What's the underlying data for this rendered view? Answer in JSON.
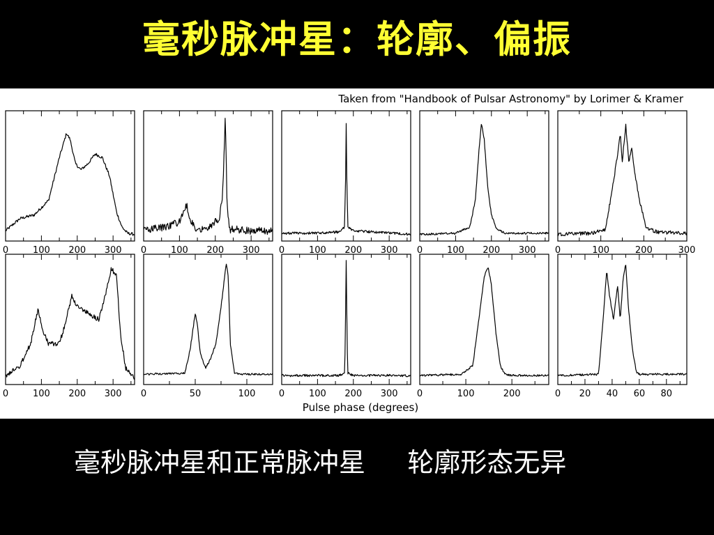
{
  "slide": {
    "title": "毫秒脉冲星：轮廓、偏振",
    "caption_left": "毫秒脉冲星和正常脉冲星",
    "caption_right": "轮廓形态无异"
  },
  "figure": {
    "credit": "Taken from \"Handbook of Pulsar Astronomy\" by Lorimer & Kramer",
    "xlabel": "Pulse phase (degrees)"
  },
  "colors": {
    "background": "#000000",
    "title": "#ffff33",
    "caption": "#ffffff",
    "panel": "#ffffff",
    "trace": "#000000"
  },
  "chart_data": [
    {
      "type": "line",
      "row": 1,
      "col": 1,
      "xlim": [
        0,
        360
      ],
      "ylim": [
        0,
        1
      ],
      "xticks": [
        0,
        100,
        200,
        300
      ],
      "xticklabels": [
        "0",
        "100",
        "200",
        "300"
      ],
      "noise": 0.012,
      "x": [
        0,
        40,
        80,
        120,
        150,
        170,
        180,
        195,
        210,
        230,
        250,
        270,
        290,
        310,
        325,
        340,
        360
      ],
      "y": [
        0.05,
        0.15,
        0.18,
        0.3,
        0.65,
        0.85,
        0.8,
        0.6,
        0.55,
        0.6,
        0.68,
        0.65,
        0.5,
        0.2,
        0.08,
        0.03,
        0.02
      ]
    },
    {
      "type": "line",
      "row": 1,
      "col": 2,
      "xlim": [
        0,
        360
      ],
      "ylim": [
        0,
        1
      ],
      "xticks": [
        0,
        100,
        200,
        300
      ],
      "xticklabels": [
        "0",
        "100",
        "200",
        "300"
      ],
      "noise": 0.03,
      "x": [
        0,
        60,
        100,
        120,
        130,
        145,
        180,
        210,
        220,
        228,
        233,
        240,
        260,
        300,
        360
      ],
      "y": [
        0.06,
        0.08,
        0.12,
        0.26,
        0.14,
        0.06,
        0.08,
        0.15,
        0.3,
        1.0,
        0.25,
        0.06,
        0.06,
        0.05,
        0.05
      ]
    },
    {
      "type": "line",
      "row": 1,
      "col": 3,
      "xlim": [
        0,
        360
      ],
      "ylim": [
        0,
        1
      ],
      "xticks": [
        0,
        100,
        200,
        300
      ],
      "xticklabels": [
        "0",
        "100",
        "200",
        "300"
      ],
      "noise": 0.01,
      "x": [
        0,
        100,
        160,
        175,
        178,
        180,
        182,
        185,
        200,
        260,
        360
      ],
      "y": [
        0.03,
        0.03,
        0.04,
        0.08,
        0.4,
        0.93,
        0.4,
        0.08,
        0.05,
        0.04,
        0.02
      ]
    },
    {
      "type": "line",
      "row": 1,
      "col": 4,
      "xlim": [
        0,
        360
      ],
      "ylim": [
        0,
        1
      ],
      "xticks": [
        0,
        100,
        200,
        300
      ],
      "xticklabels": [
        "0",
        "100",
        "200",
        "300"
      ],
      "noise": 0.008,
      "x": [
        0,
        100,
        140,
        155,
        165,
        172,
        180,
        190,
        200,
        215,
        240,
        300,
        360
      ],
      "y": [
        0.02,
        0.03,
        0.08,
        0.3,
        0.7,
        0.93,
        0.8,
        0.4,
        0.18,
        0.06,
        0.03,
        0.03,
        0.03
      ]
    },
    {
      "type": "line",
      "row": 1,
      "col": 5,
      "xlim": [
        0,
        300
      ],
      "ylim": [
        0,
        1
      ],
      "xticks": [
        0,
        100,
        200,
        300
      ],
      "xticklabels": [
        "0",
        "100",
        "200",
        "300"
      ],
      "noise": 0.015,
      "x": [
        0,
        80,
        110,
        125,
        138,
        145,
        150,
        158,
        165,
        172,
        180,
        190,
        205,
        230,
        300
      ],
      "y": [
        0.02,
        0.03,
        0.06,
        0.35,
        0.65,
        0.85,
        0.62,
        0.92,
        0.62,
        0.72,
        0.5,
        0.3,
        0.08,
        0.04,
        0.03
      ]
    },
    {
      "type": "line",
      "row": 2,
      "col": 1,
      "xlim": [
        0,
        360
      ],
      "ylim": [
        0,
        1
      ],
      "xticks": [
        0,
        100,
        200,
        300
      ],
      "xticklabels": [
        "0",
        "100",
        "200",
        "300"
      ],
      "noise": 0.02,
      "x": [
        0,
        40,
        70,
        90,
        105,
        120,
        150,
        170,
        185,
        200,
        230,
        260,
        280,
        295,
        310,
        320,
        335,
        350,
        360
      ],
      "y": [
        0.03,
        0.12,
        0.3,
        0.58,
        0.4,
        0.3,
        0.3,
        0.5,
        0.7,
        0.6,
        0.55,
        0.5,
        0.72,
        0.92,
        0.85,
        0.4,
        0.1,
        0.05,
        0.02
      ]
    },
    {
      "type": "line",
      "row": 2,
      "col": 2,
      "xlim": [
        0,
        125
      ],
      "ylim": [
        0,
        1
      ],
      "xticks": [
        0,
        50,
        100
      ],
      "xticklabels": [
        "0",
        "50",
        "100"
      ],
      "noise": 0.008,
      "x": [
        0,
        40,
        45,
        50,
        52,
        55,
        60,
        65,
        70,
        75,
        80,
        82,
        84,
        88,
        95,
        125
      ],
      "y": [
        0.05,
        0.06,
        0.25,
        0.55,
        0.46,
        0.22,
        0.1,
        0.18,
        0.3,
        0.6,
        0.96,
        0.85,
        0.3,
        0.06,
        0.05,
        0.05
      ]
    },
    {
      "type": "line",
      "row": 2,
      "col": 3,
      "xlim": [
        0,
        360
      ],
      "ylim": [
        0,
        1
      ],
      "xticks": [
        0,
        100,
        200,
        300
      ],
      "xticklabels": [
        "0",
        "100",
        "200",
        "300"
      ],
      "noise": 0.01,
      "x": [
        0,
        160,
        176,
        178,
        180,
        182,
        184,
        200,
        360
      ],
      "y": [
        0.04,
        0.04,
        0.06,
        0.5,
        0.99,
        0.5,
        0.06,
        0.04,
        0.04
      ]
    },
    {
      "type": "line",
      "row": 2,
      "col": 4,
      "xlim": [
        0,
        280
      ],
      "ylim": [
        0,
        1
      ],
      "xticks": [
        0,
        100,
        200
      ],
      "xticklabels": [
        "0",
        "100",
        "200"
      ],
      "noise": 0.008,
      "x": [
        0,
        90,
        115,
        130,
        140,
        148,
        155,
        165,
        175,
        185,
        200,
        280
      ],
      "y": [
        0.04,
        0.05,
        0.12,
        0.55,
        0.85,
        0.93,
        0.8,
        0.4,
        0.12,
        0.05,
        0.04,
        0.04
      ]
    },
    {
      "type": "line",
      "row": 2,
      "col": 5,
      "xlim": [
        0,
        95
      ],
      "ylim": [
        0,
        1
      ],
      "xticks": [
        0,
        20,
        40,
        60,
        80
      ],
      "xticklabels": [
        "0",
        "20",
        "40",
        "60",
        "80"
      ],
      "noise": 0.008,
      "x": [
        0,
        30,
        33,
        36,
        38,
        41,
        44,
        46,
        48,
        50,
        52,
        55,
        58,
        60,
        95
      ],
      "y": [
        0.04,
        0.05,
        0.45,
        0.9,
        0.7,
        0.5,
        0.78,
        0.5,
        0.82,
        0.96,
        0.6,
        0.25,
        0.06,
        0.05,
        0.05
      ]
    }
  ]
}
